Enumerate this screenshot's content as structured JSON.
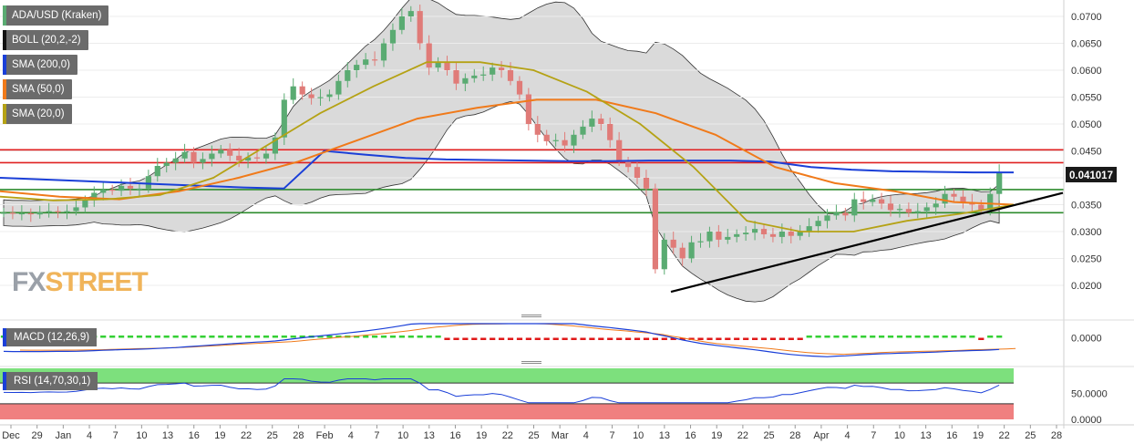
{
  "legend": {
    "pair": "ADA/USD (Kraken)",
    "boll": "BOLL (20,2,-2)",
    "sma200": "SMA (200,0)",
    "sma50": "SMA (50,0)",
    "sma20": "SMA (20,0)",
    "macd": "MACD (12,26,9)",
    "rsi": "RSI (14,70,30,1)"
  },
  "brand": {
    "left": "FX",
    "right": "STREET"
  },
  "colors": {
    "sma200": "#1a3fd8",
    "sma50": "#f07a1a",
    "sma20": "#b5a215",
    "resistance": "#e02020",
    "support": "#2e8b2e",
    "trendline": "#000000",
    "bull": "#5aab72",
    "bear": "#e07b78",
    "band": "#d6d6d6"
  },
  "chart_data": [
    {
      "type": "candlestick",
      "title": "ADA/USD (Kraken)",
      "x_ticks": [
        "Dec",
        "29",
        "Jan",
        "4",
        "7",
        "10",
        "13",
        "16",
        "19",
        "22",
        "25",
        "28",
        "Feb",
        "4",
        "7",
        "10",
        "13",
        "16",
        "19",
        "22",
        "25",
        "Mar",
        "4",
        "7",
        "10",
        "13",
        "16",
        "19",
        "22",
        "25",
        "28",
        "Apr",
        "4",
        "7",
        "10",
        "13",
        "16",
        "19",
        "22",
        "25",
        "28"
      ],
      "ylim": [
        0.0148,
        0.0728
      ],
      "y_ticks": [
        "0.0200",
        "0.0250",
        "0.0300",
        "0.0350",
        "0.0400",
        "0.0450",
        "0.0500",
        "0.0550",
        "0.0600",
        "0.0650",
        "0.0700"
      ],
      "last_price": "0.041017",
      "close": [
        0.0335,
        0.0333,
        0.0334,
        0.0332,
        0.0336,
        0.0338,
        0.0337,
        0.0338,
        0.0345,
        0.0358,
        0.0372,
        0.0378,
        0.0376,
        0.0385,
        0.038,
        0.038,
        0.0403,
        0.0422,
        0.0428,
        0.0436,
        0.0448,
        0.0428,
        0.0435,
        0.0445,
        0.0452,
        0.0441,
        0.0432,
        0.0438,
        0.0436,
        0.0445,
        0.0475,
        0.0545,
        0.057,
        0.0555,
        0.0548,
        0.055,
        0.0555,
        0.058,
        0.06,
        0.061,
        0.062,
        0.0618,
        0.065,
        0.0675,
        0.07,
        0.071,
        0.065,
        0.0605,
        0.0615,
        0.06,
        0.0575,
        0.0585,
        0.059,
        0.0592,
        0.0605,
        0.06,
        0.058,
        0.0555,
        0.05,
        0.048,
        0.0468,
        0.047,
        0.046,
        0.048,
        0.0495,
        0.051,
        0.05,
        0.047,
        0.043,
        0.042,
        0.04,
        0.038,
        0.023,
        0.0285,
        0.027,
        0.025,
        0.028,
        0.0282,
        0.03,
        0.0285,
        0.029,
        0.0295,
        0.0298,
        0.0305,
        0.0295,
        0.029,
        0.03,
        0.0292,
        0.03,
        0.031,
        0.032,
        0.033,
        0.0335,
        0.033,
        0.036,
        0.0355,
        0.036,
        0.0352,
        0.034,
        0.0342,
        0.0335,
        0.0338,
        0.0345,
        0.0352,
        0.037,
        0.0365,
        0.0355,
        0.035,
        0.034,
        0.037,
        0.041
      ],
      "sma200": [
        0.04,
        0.0397,
        0.0394,
        0.0391,
        0.0388,
        0.0385,
        0.0382,
        0.038,
        0.045,
        0.0443,
        0.0437,
        0.0434,
        0.0433,
        0.0432,
        0.0431,
        0.0431,
        0.0432,
        0.0432,
        0.0432,
        0.043,
        0.042,
        0.0415,
        0.0412,
        0.0411,
        0.041,
        0.041
      ],
      "sma50": [
        0.0375,
        0.0365,
        0.036,
        0.0375,
        0.04,
        0.043,
        0.047,
        0.051,
        0.053,
        0.0545,
        0.0545,
        0.052,
        0.048,
        0.042,
        0.039,
        0.0375,
        0.0355,
        0.035
      ],
      "sma20": [
        0.0365,
        0.0358,
        0.036,
        0.0368,
        0.04,
        0.046,
        0.052,
        0.057,
        0.0615,
        0.0615,
        0.06,
        0.056,
        0.05,
        0.042,
        0.032,
        0.03,
        0.03,
        0.032,
        0.0333,
        0.035
      ],
      "resistance": [
        0.0452,
        0.0428
      ],
      "support": [
        0.0378,
        0.0335
      ],
      "trendline": {
        "from": 0.0188,
        "to": 0.0372
      }
    },
    {
      "type": "macd",
      "title": "MACD (12,26,9)",
      "y_ticks": [
        "0.0000"
      ],
      "ylim": [
        -0.004,
        0.003
      ]
    },
    {
      "type": "rsi",
      "title": "RSI (14,70,30,1)",
      "y_ticks": [
        "0.0000",
        "50.0000"
      ],
      "ylim": [
        0,
        100
      ],
      "overbought": 70,
      "oversold": 30
    }
  ]
}
